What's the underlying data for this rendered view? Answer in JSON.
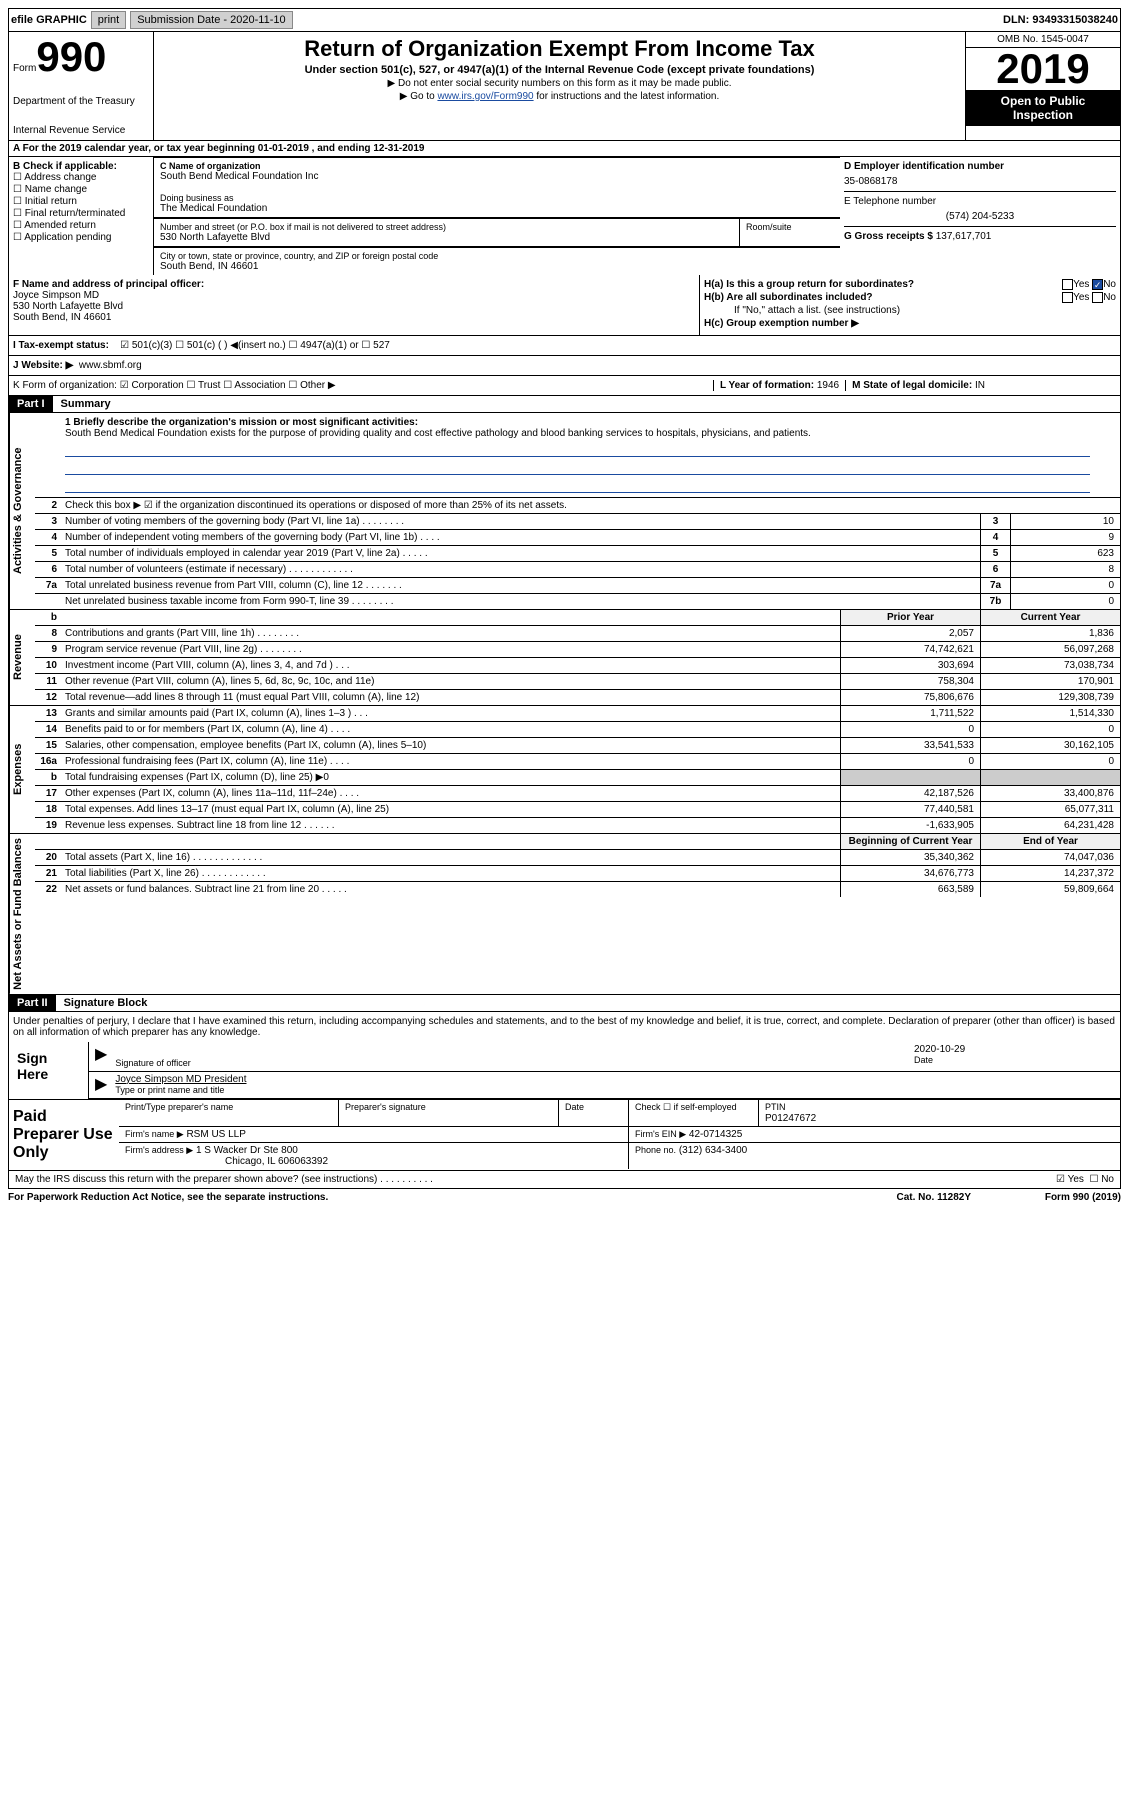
{
  "topbar": {
    "efile": "efile GRAPHIC",
    "print": "print",
    "subdate_lbl": "Submission Date",
    "subdate": "2020-11-10",
    "dln": "DLN: 93493315038240"
  },
  "header": {
    "form_word": "Form",
    "form_num": "990",
    "dept1": "Department of the Treasury",
    "dept2": "Internal Revenue Service",
    "title": "Return of Organization Exempt From Income Tax",
    "sub": "Under section 501(c), 527, or 4947(a)(1) of the Internal Revenue Code (except private foundations)",
    "note1": "▶ Do not enter social security numbers on this form as it may be made public.",
    "note2_pre": "▶ Go to ",
    "note2_link": "www.irs.gov/Form990",
    "note2_post": " for instructions and the latest information.",
    "omb": "OMB No. 1545-0047",
    "year": "2019",
    "public1": "Open to Public",
    "public2": "Inspection"
  },
  "rowA": "A For the 2019 calendar year, or tax year beginning 01-01-2019    , and ending 12-31-2019",
  "colB": {
    "title": "B Check if applicable:",
    "items": [
      "☐ Address change",
      "☐ Name change",
      "☐ Initial return",
      "☐ Final return/terminated",
      "☐ Amended return",
      "☐ Application pending"
    ]
  },
  "colC": {
    "name_lbl": "C Name of organization",
    "name": "South Bend Medical Foundation Inc",
    "dba_lbl": "Doing business as",
    "dba": "The Medical Foundation",
    "addr_lbl": "Number and street (or P.O. box if mail is not delivered to street address)",
    "addr": "530 North Lafayette Blvd",
    "room_lbl": "Room/suite",
    "city_lbl": "City or town, state or province, country, and ZIP or foreign postal code",
    "city": "South Bend, IN  46601"
  },
  "colD": {
    "ein_lbl": "D Employer identification number",
    "ein": "35-0868178",
    "tel_lbl": "E Telephone number",
    "tel": "(574) 204-5233",
    "gross_lbl": "G Gross receipts $",
    "gross": "137,617,701"
  },
  "colF": {
    "lbl": "F  Name and address of principal officer:",
    "name": "Joyce Simpson MD",
    "addr1": "530 North Lafayette Blvd",
    "addr2": "South Bend, IN  46601"
  },
  "colH": {
    "ha": "H(a)  Is this a group return for subordinates?",
    "hb": "H(b)  Are all subordinates included?",
    "hb_note": "If \"No,\" attach a list. (see instructions)",
    "hc": "H(c)  Group exemption number ▶",
    "yes": "Yes",
    "no": "No"
  },
  "rowI": {
    "lbl": "I    Tax-exempt status:",
    "opts": "☑ 501(c)(3)    ☐ 501(c) (  ) ◀(insert no.)    ☐ 4947(a)(1) or    ☐ 527"
  },
  "rowJ": {
    "lbl": "J   Website: ▶",
    "val": "www.sbmf.org"
  },
  "rowK": {
    "k": "K Form of organization:  ☑ Corporation  ☐ Trust  ☐ Association  ☐ Other ▶",
    "l_lbl": "L Year of formation:",
    "l_val": "1946",
    "m_lbl": "M State of legal domicile:",
    "m_val": "IN"
  },
  "part1": {
    "part": "Part I",
    "title": "Summary"
  },
  "mission": {
    "lbl": "1  Briefly describe the organization's mission or most significant activities:",
    "text": "South Bend Medical Foundation exists for the purpose of providing quality and cost effective pathology and blood banking services to hospitals, physicians, and patients."
  },
  "gov": {
    "r2": "Check this box ▶ ☑  if the organization discontinued its operations or disposed of more than 25% of its net assets.",
    "rows": [
      {
        "n": "3",
        "d": "Number of voting members of the governing body (Part VI, line 1a)  .   .   .   .   .   .   .   .",
        "c": "3",
        "v": "10"
      },
      {
        "n": "4",
        "d": "Number of independent voting members of the governing body (Part VI, line 1b)  .   .   .   .",
        "c": "4",
        "v": "9"
      },
      {
        "n": "5",
        "d": "Total number of individuals employed in calendar year 2019 (Part V, line 2a)  .   .   .   .   .",
        "c": "5",
        "v": "623"
      },
      {
        "n": "6",
        "d": "Total number of volunteers (estimate if necessary)   .   .   .   .   .   .   .   .   .   .   .   .",
        "c": "6",
        "v": "8"
      },
      {
        "n": "7a",
        "d": "Total unrelated business revenue from Part VIII, column (C), line 12  .   .   .   .   .   .   .",
        "c": "7a",
        "v": "0"
      },
      {
        "n": "",
        "d": "Net unrelated business taxable income from Form 990-T, line 39   .   .   .   .   .   .   .   .",
        "c": "7b",
        "v": "0"
      }
    ]
  },
  "rev": {
    "hdr_prior": "Prior Year",
    "hdr_curr": "Current Year",
    "rows": [
      {
        "n": "8",
        "d": "Contributions and grants (Part VIII, line 1h)   .   .   .   .   .   .   .   .",
        "p": "2,057",
        "c": "1,836"
      },
      {
        "n": "9",
        "d": "Program service revenue (Part VIII, line 2g)   .   .   .   .   .   .   .   .",
        "p": "74,742,621",
        "c": "56,097,268"
      },
      {
        "n": "10",
        "d": "Investment income (Part VIII, column (A), lines 3, 4, and 7d )  .   .   .",
        "p": "303,694",
        "c": "73,038,734"
      },
      {
        "n": "11",
        "d": "Other revenue (Part VIII, column (A), lines 5, 6d, 8c, 9c, 10c, and 11e)",
        "p": "758,304",
        "c": "170,901"
      },
      {
        "n": "12",
        "d": "Total revenue—add lines 8 through 11 (must equal Part VIII, column (A), line 12)",
        "p": "75,806,676",
        "c": "129,308,739"
      }
    ]
  },
  "exp": {
    "rows": [
      {
        "n": "13",
        "d": "Grants and similar amounts paid (Part IX, column (A), lines 1–3 )  .   .   .",
        "p": "1,711,522",
        "c": "1,514,330"
      },
      {
        "n": "14",
        "d": "Benefits paid to or for members (Part IX, column (A), line 4)  .   .   .   .",
        "p": "0",
        "c": "0"
      },
      {
        "n": "15",
        "d": "Salaries, other compensation, employee benefits (Part IX, column (A), lines 5–10)",
        "p": "33,541,533",
        "c": "30,162,105"
      },
      {
        "n": "16a",
        "d": "Professional fundraising fees (Part IX, column (A), line 11e)  .   .   .   .",
        "p": "0",
        "c": "0"
      },
      {
        "n": "b",
        "d": "Total fundraising expenses (Part IX, column (D), line 25) ▶0",
        "p": "",
        "c": "",
        "gray": true
      },
      {
        "n": "17",
        "d": "Other expenses (Part IX, column (A), lines 11a–11d, 11f–24e)  .   .   .   .",
        "p": "42,187,526",
        "c": "33,400,876"
      },
      {
        "n": "18",
        "d": "Total expenses. Add lines 13–17 (must equal Part IX, column (A), line 25)",
        "p": "77,440,581",
        "c": "65,077,311"
      },
      {
        "n": "19",
        "d": "Revenue less expenses. Subtract line 18 from line 12  .   .   .   .   .   .",
        "p": "-1,633,905",
        "c": "64,231,428"
      }
    ]
  },
  "net": {
    "hdr_beg": "Beginning of Current Year",
    "hdr_end": "End of Year",
    "rows": [
      {
        "n": "20",
        "d": "Total assets (Part X, line 16)  .   .   .   .   .   .   .   .   .   .   .   .   .",
        "p": "35,340,362",
        "c": "74,047,036"
      },
      {
        "n": "21",
        "d": "Total liabilities (Part X, line 26)  .   .   .   .   .   .   .   .   .   .   .   .",
        "p": "34,676,773",
        "c": "14,237,372"
      },
      {
        "n": "22",
        "d": "Net assets or fund balances. Subtract line 21 from line 20  .   .   .   .   .",
        "p": "663,589",
        "c": "59,809,664"
      }
    ]
  },
  "vtabs": {
    "gov": "Activities & Governance",
    "rev": "Revenue",
    "exp": "Expenses",
    "net": "Net Assets or Fund Balances"
  },
  "part2": {
    "part": "Part II",
    "title": "Signature Block"
  },
  "sig": {
    "note": "Under penalties of perjury, I declare that I have examined this return, including accompanying schedules and statements, and to the best of my knowledge and belief, it is true, correct, and complete. Declaration of preparer (other than officer) is based on all information of which preparer has any knowledge.",
    "sign_here": "Sign Here",
    "sig_lbl": "Signature of officer",
    "date_lbl": "Date",
    "date": "2020-10-29",
    "name": "Joyce Simpson MD President",
    "name_lbl": "Type or print name and title"
  },
  "prep": {
    "title": "Paid Preparer Use Only",
    "h1": "Print/Type preparer's name",
    "h2": "Preparer's signature",
    "h3": "Date",
    "h4_lbl": "Check ☐ if self-employed",
    "h5_lbl": "PTIN",
    "h5": "P01247672",
    "firm_lbl": "Firm's name    ▶",
    "firm": "RSM US LLP",
    "ein_lbl": "Firm's EIN ▶",
    "ein": "42-0714325",
    "addr_lbl": "Firm's address ▶",
    "addr1": "1 S Wacker Dr Ste 800",
    "addr2": "Chicago, IL  606063392",
    "phone_lbl": "Phone no.",
    "phone": "(312) 634-3400"
  },
  "footer": {
    "discuss": "May the IRS discuss this return with the preparer shown above? (see instructions)   .   .   .   .   .   .   .   .   .   .",
    "yes": "☑ Yes",
    "no": "☐ No",
    "paperwork": "For Paperwork Reduction Act Notice, see the separate instructions.",
    "cat": "Cat. No. 11282Y",
    "form": "Form 990 (2019)"
  }
}
